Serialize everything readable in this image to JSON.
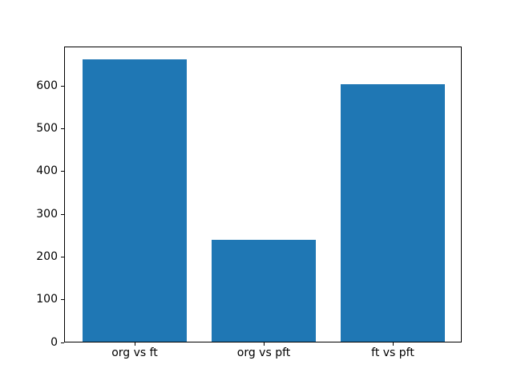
{
  "chart_data": {
    "type": "bar",
    "title": "",
    "xlabel": "",
    "ylabel": "",
    "categories": [
      "org vs ft",
      "org vs pft",
      "ft vs pft"
    ],
    "values": [
      660,
      238,
      602
    ],
    "ylim": [
      0,
      693
    ],
    "yticks": [
      0,
      100,
      200,
      300,
      400,
      500,
      600
    ],
    "bar_color": "#1f77b4",
    "background_color": "#ffffff",
    "grid": false,
    "legend": false
  }
}
